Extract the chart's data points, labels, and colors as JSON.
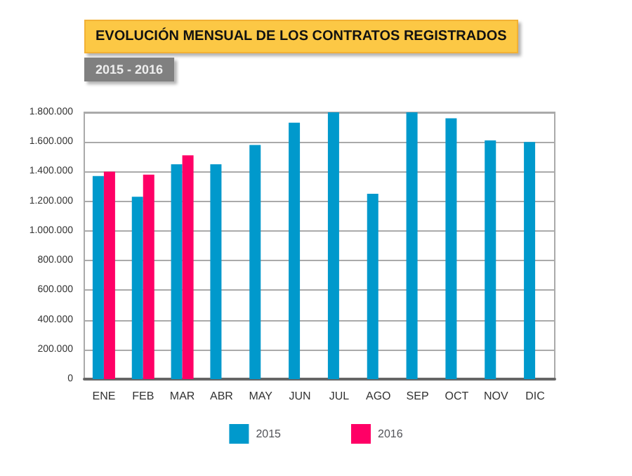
{
  "chart_data": {
    "type": "bar",
    "title": "EVOLUCIÓN MENSUAL DE LOS CONTRATOS REGISTRADOS",
    "subtitle": "2015 - 2016",
    "categories": [
      "ENE",
      "FEB",
      "MAR",
      "ABR",
      "MAY",
      "JUN",
      "JUL",
      "AGO",
      "SEP",
      "OCT",
      "NOV",
      "DIC"
    ],
    "series": [
      {
        "name": "2015",
        "color": "#0099cc",
        "values": [
          1370000,
          1230000,
          1450000,
          1450000,
          1580000,
          1730000,
          1800000,
          1250000,
          1800000,
          1760000,
          1610000,
          1600000
        ]
      },
      {
        "name": "2016",
        "color": "#ff0066",
        "values": [
          1400000,
          1380000,
          1510000,
          null,
          null,
          null,
          null,
          null,
          null,
          null,
          null,
          null
        ]
      }
    ],
    "ylim": [
      0,
      1800000
    ],
    "yticks": [
      0,
      {
        "value": 200000,
        "label": "200.000"
      },
      {
        "value": 400000,
        "label": "400.000"
      },
      {
        "value": 600000,
        "label": "600.000"
      },
      {
        "value": 800000,
        "label": "800.000"
      },
      {
        "value": 1000000,
        "label": "1.000.000"
      },
      {
        "value": 1200000,
        "label": "1.200.000"
      },
      {
        "value": 1400000,
        "label": "1.400.000"
      },
      {
        "value": 1600000,
        "label": "1.600.000"
      },
      {
        "value": 1800000,
        "label": "1.800.000"
      }
    ],
    "grid": "y",
    "legend": "bottom"
  }
}
